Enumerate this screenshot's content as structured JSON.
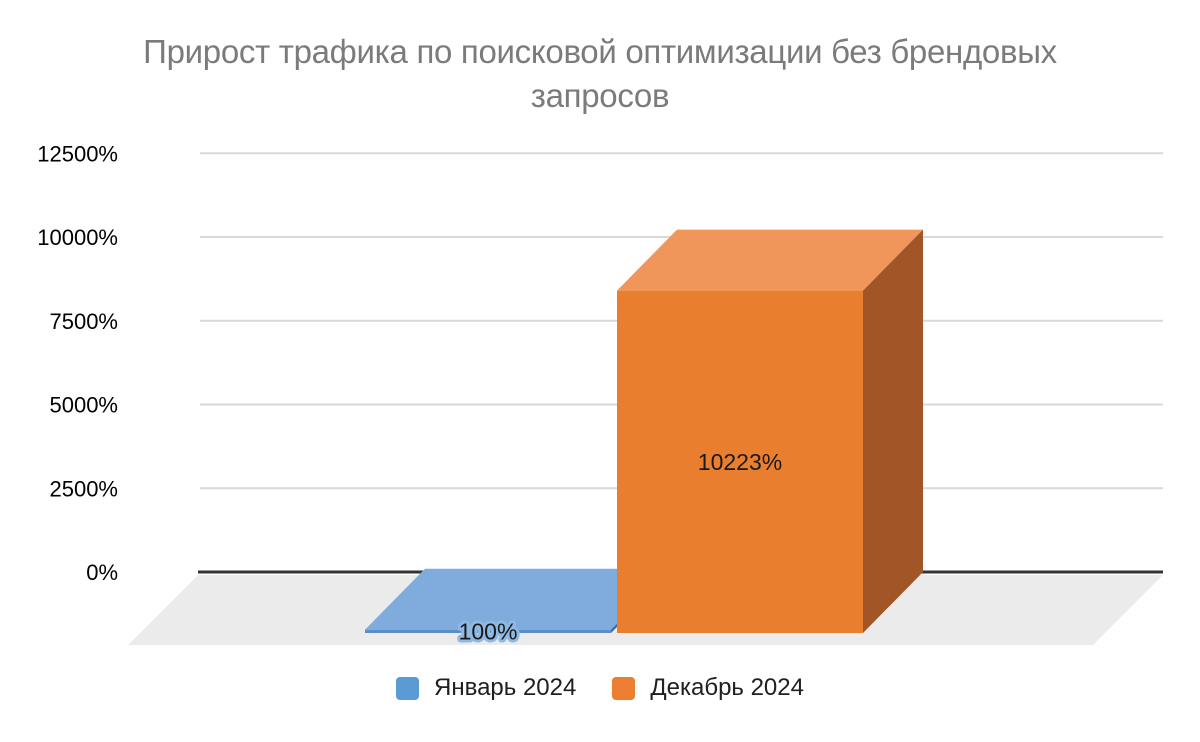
{
  "title": {
    "line1": "Прирост трафика по поисковой оптимизации без брендовых",
    "line2": "запросов"
  },
  "legend": {
    "items": [
      {
        "label": "Январь 2024",
        "color": "#5B9BD5"
      },
      {
        "label": "Декабрь 2024",
        "color": "#ED7D31"
      }
    ]
  },
  "chart_data": {
    "type": "bar",
    "projection": "3d",
    "title": "Прирост трафика по поисковой оптимизации без брендовых запросов",
    "categories": [
      "Январь 2024",
      "Декабрь 2024"
    ],
    "series": [
      {
        "name": "Январь 2024",
        "value": 100,
        "label": "100%",
        "colors": {
          "front": "#5B8DC7",
          "top": "#7FACDC",
          "side": "#41699C",
          "legend": "#5B9BD5",
          "label_halo": "#8FB9E3"
        }
      },
      {
        "name": "Декабрь 2024",
        "value": 10223,
        "label": "10223%",
        "colors": {
          "front": "#EA7E2F",
          "top": "#F0965A",
          "side": "#A25526",
          "legend": "#ED7D31"
        }
      }
    ],
    "y_axis": {
      "min": 0,
      "max": 12500,
      "tick_step": 2500,
      "ticks": [
        {
          "value": 0,
          "label": "0%"
        },
        {
          "value": 2500,
          "label": "2500%"
        },
        {
          "value": 5000,
          "label": "5000%"
        },
        {
          "value": 7500,
          "label": "7500%"
        },
        {
          "value": 10000,
          "label": "10000%"
        },
        {
          "value": 12500,
          "label": "12500%"
        }
      ]
    },
    "grid": true,
    "legend_position": "bottom",
    "colors": {
      "grid_line": "#D9D9D9",
      "zero_line": "#333333",
      "floor": "#EBEBEB",
      "tick_label": "#000000",
      "bar_label": "#1A1A1A",
      "title": "#7B7B7B"
    }
  }
}
